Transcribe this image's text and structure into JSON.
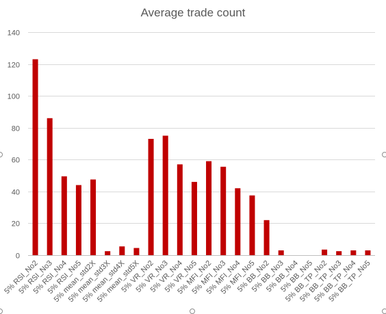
{
  "chart_data": {
    "type": "bar",
    "title": "Average trade count",
    "xlabel": "",
    "ylabel": "",
    "ylim": [
      0,
      140
    ],
    "yticks": [
      0,
      20,
      40,
      60,
      80,
      100,
      120,
      140
    ],
    "grid": true,
    "legend": "none",
    "bar_color": "#C00000",
    "categories": [
      "5% RSI_No2",
      "5% RSI_No3",
      "5% RSI_No4",
      "5% RSI_No5",
      "5% mean_std2X",
      "5% mean_std3X",
      "5% mean_std4X",
      "5% mean_std5X",
      "5% VR_No2",
      "5% VR_No3",
      "5% VR_No4",
      "5% VR_No5",
      "5% MFI_No2",
      "5% MFI_No3",
      "5% MFI_No4",
      "5% MFI_No5",
      "5% BB_No2",
      "5% BB_No3",
      "5% BB_No4",
      "5% BB_No5",
      "5% BB_TP_No2",
      "5% BB_TP_No3",
      "5% BB_TP_No4",
      "5% BB_TP_No5"
    ],
    "values": [
      123,
      86,
      49.5,
      44,
      47.5,
      2.5,
      5.5,
      4.5,
      73,
      75,
      57,
      46,
      59,
      55.5,
      42,
      37.5,
      22,
      3,
      0,
      0,
      3.5,
      2.5,
      3,
      3
    ]
  }
}
